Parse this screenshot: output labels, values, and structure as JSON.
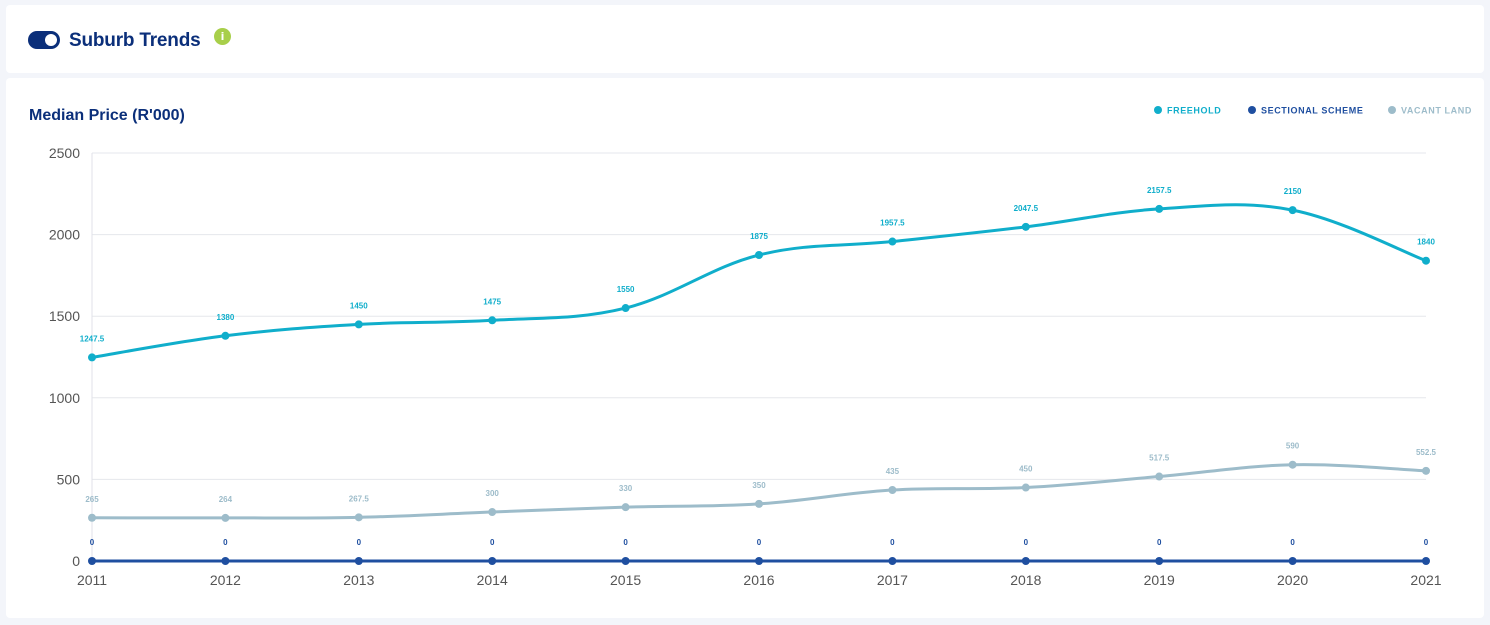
{
  "header": {
    "title": "Suburb Trends",
    "info_icon": "i"
  },
  "colors": {
    "freehold": "#10aecb",
    "sectional": "#1f4fa0",
    "vacant": "#9dbcca",
    "title": "#0b2f7a"
  },
  "chart_data": {
    "type": "line",
    "title": "Median Price (R'000)",
    "xlabel": "",
    "ylabel": "",
    "ylim": [
      0,
      2500
    ],
    "yticks": [
      "0",
      "500",
      "1000",
      "1500",
      "2000",
      "2500"
    ],
    "grid": true,
    "legend_position": "top-right",
    "categories": [
      "2011",
      "2012",
      "2013",
      "2014",
      "2015",
      "2016",
      "2017",
      "2018",
      "2019",
      "2020",
      "2021"
    ],
    "series": [
      {
        "name": "FREEHOLD",
        "color": "#10aecb",
        "values": [
          1247.5,
          1380,
          1450,
          1475,
          1550,
          1875,
          1957.5,
          2047.5,
          2157.5,
          2150,
          1840
        ],
        "labels": [
          "1247.5",
          "1380",
          "1450",
          "1475",
          "1550",
          "1875",
          "1957.5",
          "2047.5",
          "2157.5",
          "2150",
          "1840"
        ]
      },
      {
        "name": "SECTIONAL SCHEME",
        "color": "#1f4fa0",
        "values": [
          0,
          0,
          0,
          0,
          0,
          0,
          0,
          0,
          0,
          0,
          0
        ],
        "labels": [
          "0",
          "0",
          "0",
          "0",
          "0",
          "0",
          "0",
          "0",
          "0",
          "0",
          "0"
        ]
      },
      {
        "name": "VACANT LAND",
        "color": "#9dbcca",
        "values": [
          265,
          264,
          267.5,
          300,
          330,
          350,
          435,
          450,
          517.5,
          590,
          552.5
        ],
        "labels": [
          "265",
          "264",
          "267.5",
          "300",
          "330",
          "350",
          "435",
          "450",
          "517.5",
          "590",
          "552.5"
        ]
      }
    ]
  }
}
